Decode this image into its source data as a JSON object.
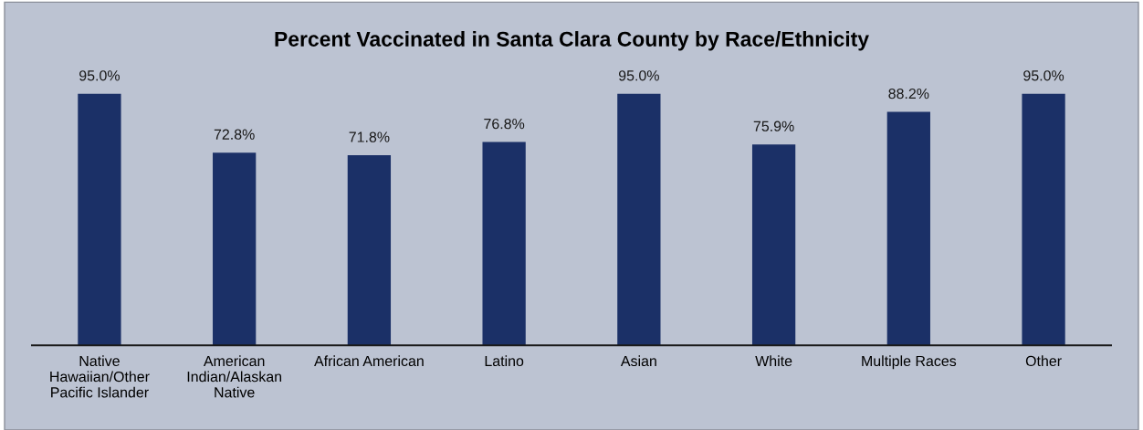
{
  "chart_data": {
    "type": "bar",
    "title": "Percent Vaccinated in Santa Clara County by Race/Ethnicity",
    "categories": [
      "Native\nHawaiian/Other\nPacific Islander",
      "American\nIndian/Alaskan\nNative",
      "African American",
      "Latino",
      "Asian",
      "White",
      "Multiple Races",
      "Other"
    ],
    "values": [
      95.0,
      72.8,
      71.8,
      76.8,
      95.0,
      75.9,
      88.2,
      95.0
    ],
    "value_labels": [
      "95.0%",
      "72.8%",
      "71.8%",
      "76.8%",
      "95.0%",
      "75.9%",
      "88.2%",
      "95.0%"
    ],
    "color": "#1b3067",
    "grid": false,
    "legend": false
  }
}
